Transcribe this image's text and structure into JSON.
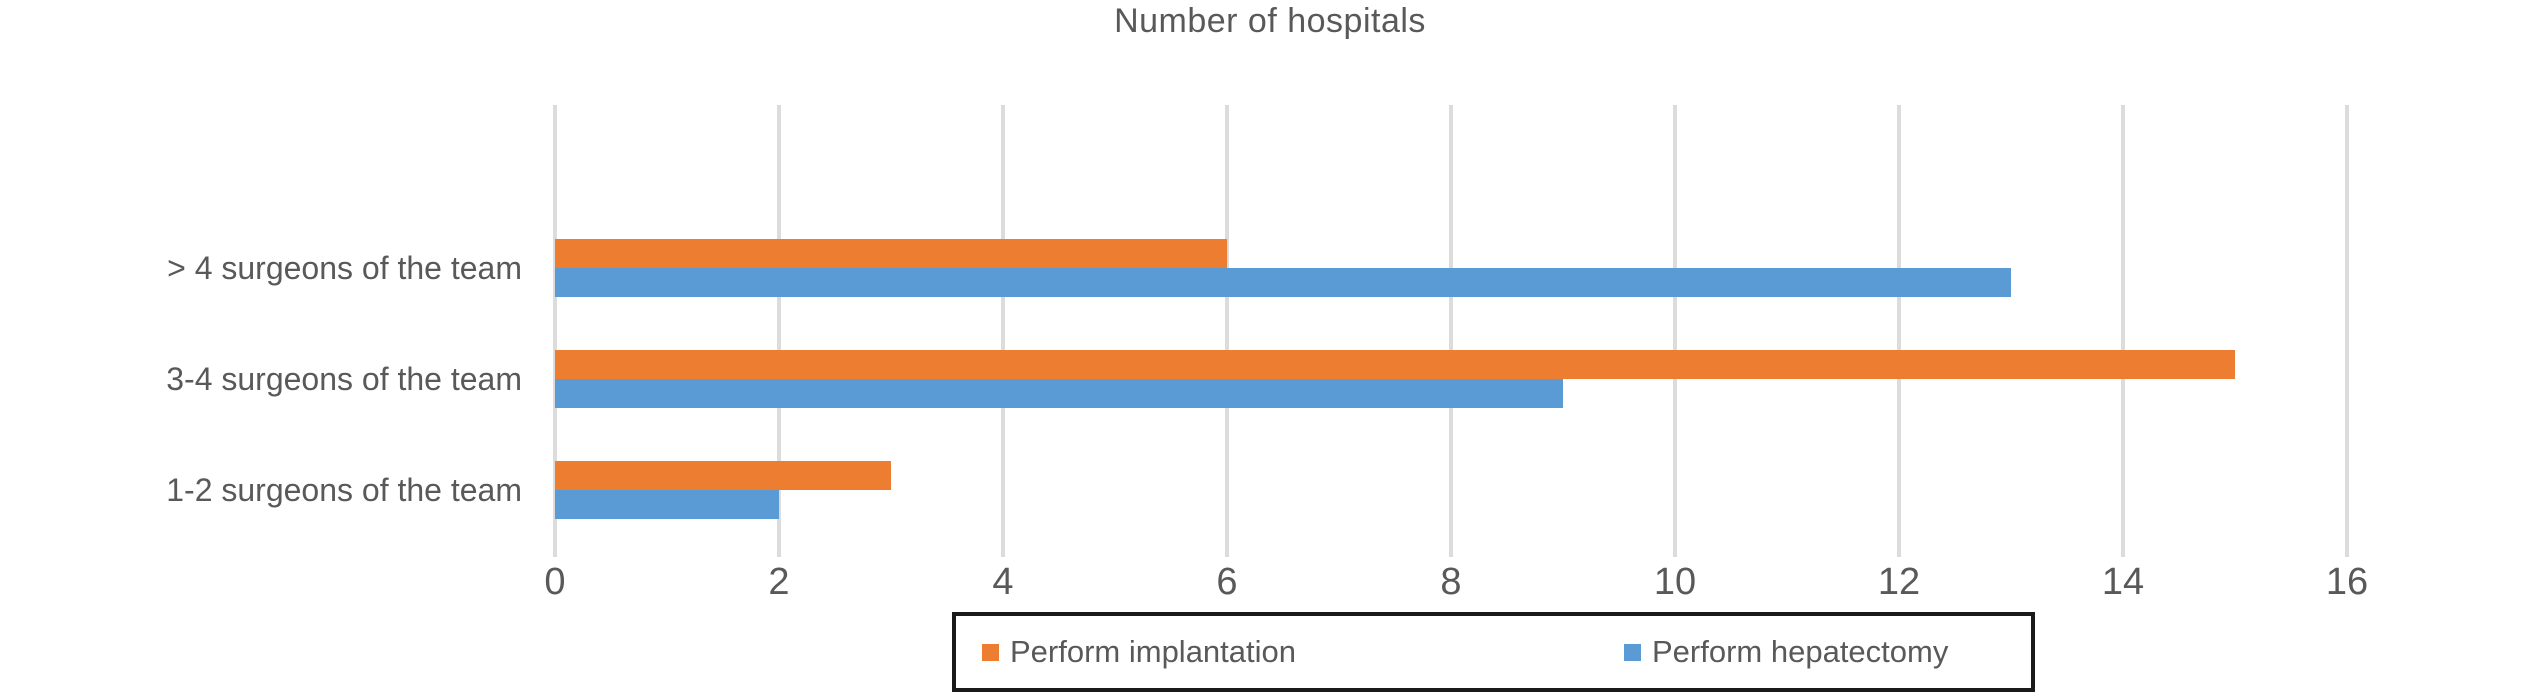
{
  "chart_data": {
    "type": "bar",
    "orientation": "horizontal",
    "title": "Number of hospitals",
    "categories": [
      "> 4 surgeons of the team",
      "3-4 surgeons of the team",
      "1-2 surgeons of the team"
    ],
    "series": [
      {
        "name": "Perform implantation",
        "color": "#ED7D31",
        "values": [
          6,
          15,
          3
        ]
      },
      {
        "name": "Perform hepatectomy",
        "color": "#5B9BD5",
        "values": [
          13,
          9,
          2
        ]
      }
    ],
    "x_axis": {
      "min": 0,
      "max": 16,
      "tick_step": 2,
      "ticks": [
        0,
        2,
        4,
        6,
        8,
        10,
        12,
        14,
        16
      ]
    },
    "grid": true,
    "legend_position": "bottom",
    "colors": {
      "gridline": "#DCDCDC",
      "text": "#595959",
      "legend_border": "#1a1a1a",
      "background": "#ffffff"
    }
  }
}
